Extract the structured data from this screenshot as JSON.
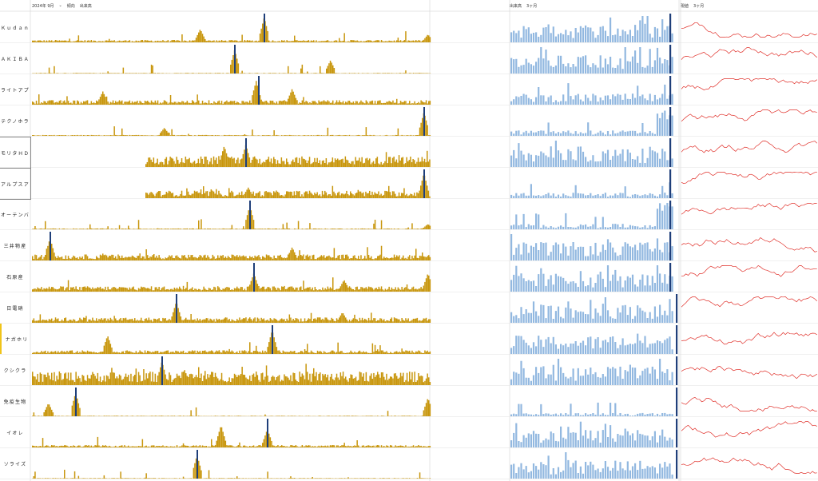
{
  "header": {
    "period_label": "2024年 9月",
    "period_chevron": "chevron-down-icon",
    "col1_label": "傾向",
    "col2_label": "出来高",
    "mid_label1": "出来高",
    "mid_label2": "3ヶ月",
    "right_label1": "現値",
    "right_label2": "3ヶ月"
  },
  "colors": {
    "volume_bar": "#c8960c",
    "highlight_bar": "#1f3f7a",
    "recent_bar": "#92b8e0",
    "recent_highlight": "#1f3f7a",
    "price_line": "#e0302a",
    "selected_marker": "#f0c419"
  },
  "rows": [
    {
      "label": "Ｋｕｄａｎ"
    },
    {
      "label": "ＡＫＩＢＡ"
    },
    {
      "label": "ライトアプ"
    },
    {
      "label": "テクノホラ"
    },
    {
      "label": "モリタＨＤ"
    },
    {
      "label": "アルプスア"
    },
    {
      "label": "オーテンバ"
    },
    {
      "label": "三井物産"
    },
    {
      "label": "石原産"
    },
    {
      "label": "日電硝"
    },
    {
      "label": "ナガホリ"
    },
    {
      "label": "クシクラ"
    },
    {
      "label": "免疫生物"
    },
    {
      "label": "イオレ"
    },
    {
      "label": "ソライズ"
    }
  ]
}
